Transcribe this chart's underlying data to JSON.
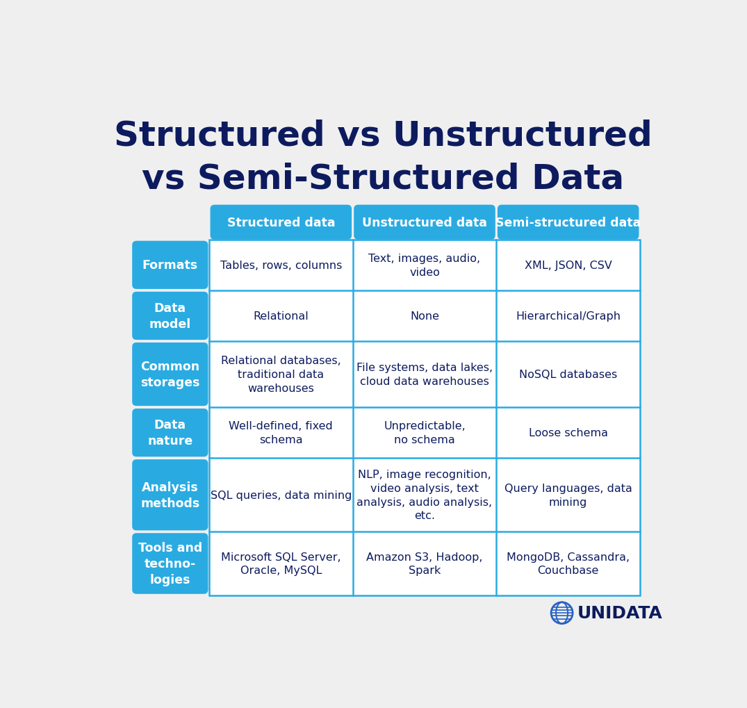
{
  "title_line1": "Structured vs Unstructured",
  "title_line2": "vs Semi-Structured Data",
  "title_color": "#0d1b5e",
  "bg_color": "#efefef",
  "header_bg": "#29abe2",
  "header_text_color": "#ffffff",
  "row_label_bg": "#29abe2",
  "row_label_text_color": "#ffffff",
  "cell_bg": "#ffffff",
  "cell_text_color": "#0d1b5e",
  "grid_color": "#29abe2",
  "col_headers": [
    "Structured data",
    "Unstructured data",
    "Semi-structured data"
  ],
  "row_labels": [
    "Formats",
    "Data\nmodel",
    "Common\nstorages",
    "Data\nnature",
    "Analysis\nmethods",
    "Tools and\ntechno-\nlogies"
  ],
  "table_data": [
    [
      "Tables, rows, columns",
      "Text, images, audio,\nvideo",
      "XML, JSON, CSV"
    ],
    [
      "Relational",
      "None",
      "Hierarchical/Graph"
    ],
    [
      "Relational databases,\ntraditional data\nwarehouses",
      "File systems, data lakes,\ncloud data warehouses",
      "NoSQL databases"
    ],
    [
      "Well-defined, fixed\nschema",
      "Unpredictable,\nno schema",
      "Loose schema"
    ],
    [
      "SQL queries, data mining",
      "NLP, image recognition,\nvideo analysis, text\nanalysis, audio analysis,\netc.",
      "Query languages, data\nmining"
    ],
    [
      "Microsoft SQL Server,\nOracle, MySQL",
      "Amazon S3, Hadoop,\nSpark",
      "MongoDB, Cassandra,\nCouchbase"
    ]
  ],
  "logo_text": "UNIDATA",
  "logo_color": "#0d1b5e",
  "logo_globe_color": "#2962c4"
}
